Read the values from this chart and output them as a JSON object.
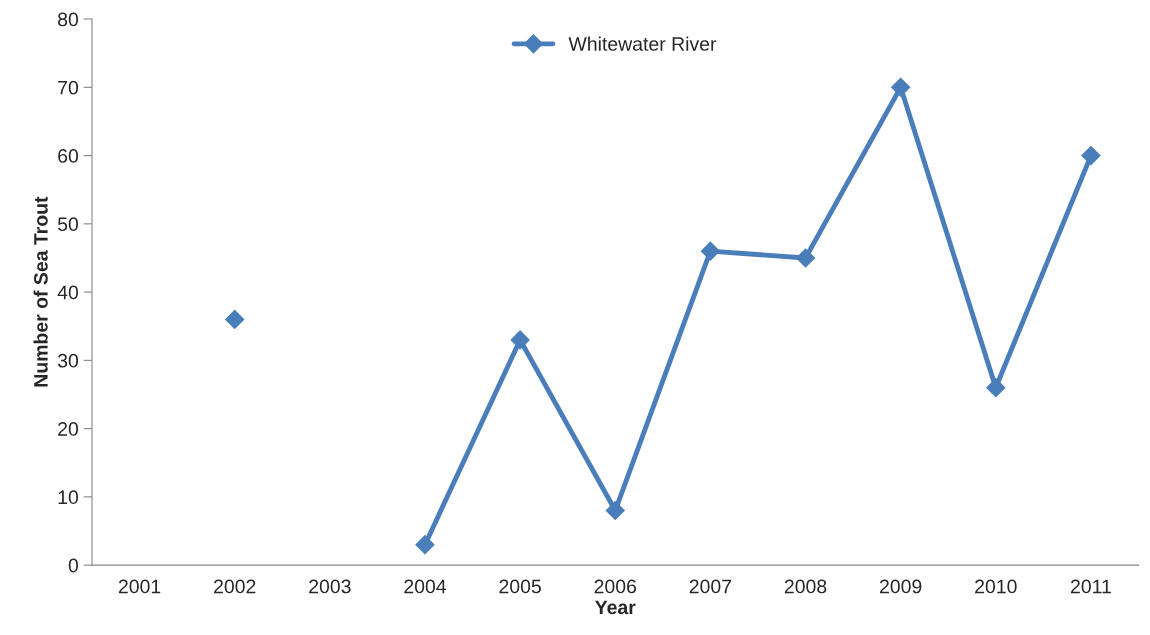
{
  "chart_data": {
    "type": "line",
    "xlabel": "Year",
    "ylabel": "Number of Sea Trout",
    "categories": [
      "2001",
      "2002",
      "2003",
      "2004",
      "2005",
      "2006",
      "2007",
      "2008",
      "2009",
      "2010",
      "2011"
    ],
    "series": [
      {
        "name": "Whitewater River",
        "color": "#4a7ebb",
        "values": [
          null,
          36,
          null,
          3,
          33,
          8,
          46,
          45,
          70,
          26,
          60
        ]
      }
    ],
    "ylim": [
      0,
      80
    ],
    "yticks": [
      0,
      10,
      20,
      30,
      40,
      50,
      60,
      70,
      80
    ],
    "marker": "diamond",
    "line_style": "solid",
    "legend": "top",
    "grid": false
  }
}
